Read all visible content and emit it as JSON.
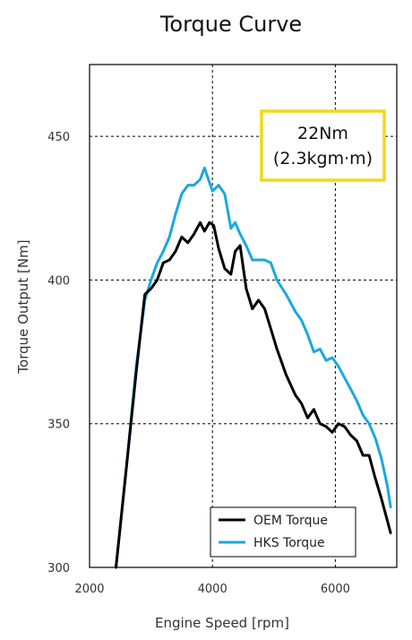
{
  "chart_data": {
    "type": "line",
    "title": "Torque Curve",
    "xlabel": "Engine Speed [rpm]",
    "ylabel": "Torque Output [Nm]",
    "xlim": [
      2000,
      7000
    ],
    "ylim": [
      300,
      475
    ],
    "xticks": [
      2000,
      4000,
      6000
    ],
    "yticks": [
      300,
      350,
      400,
      450
    ],
    "grid": "dashed",
    "legend_position": "bottom-right",
    "callout": {
      "line1": "22Nm",
      "line2": "(2.3kgm·m)",
      "border_color": "#f2d817"
    },
    "series": [
      {
        "name": "OEM Torque",
        "color": "#000000",
        "x": [
          2430,
          2600,
          2760,
          2900,
          3000,
          3100,
          3200,
          3300,
          3400,
          3500,
          3600,
          3700,
          3800,
          3870,
          3950,
          4020,
          4100,
          4200,
          4300,
          4370,
          4450,
          4550,
          4650,
          4750,
          4850,
          4950,
          5050,
          5200,
          5350,
          5450,
          5550,
          5650,
          5750,
          5850,
          5950,
          6050,
          6150,
          6250,
          6350,
          6450,
          6550,
          6650,
          6750,
          6850,
          6900
        ],
        "y": [
          300,
          335,
          368,
          395,
          397,
          400,
          406,
          407,
          410,
          415,
          413,
          416,
          420,
          417,
          420,
          419,
          411,
          404,
          402,
          410,
          412,
          397,
          390,
          393,
          390,
          383,
          376,
          367,
          360,
          357,
          352,
          355,
          350,
          349,
          347,
          350,
          349,
          346,
          344,
          339,
          339,
          331,
          324,
          316,
          312
        ]
      },
      {
        "name": "HKS Torque",
        "color": "#1aa8e0",
        "x": [
          2430,
          2600,
          2760,
          2900,
          3000,
          3100,
          3200,
          3300,
          3400,
          3500,
          3600,
          3700,
          3800,
          3870,
          3950,
          4000,
          4100,
          4200,
          4300,
          4370,
          4450,
          4550,
          4650,
          4750,
          4850,
          4950,
          5050,
          5200,
          5350,
          5450,
          5550,
          5650,
          5750,
          5850,
          5950,
          6050,
          6150,
          6250,
          6350,
          6450,
          6550,
          6650,
          6750,
          6850,
          6900
        ],
        "y": [
          300,
          335,
          370,
          393,
          400,
          406,
          410,
          415,
          423,
          430,
          433,
          433,
          435,
          439,
          434,
          431,
          433,
          430,
          418,
          420,
          416,
          412,
          407,
          407,
          407,
          406,
          400,
          395,
          389,
          386,
          381,
          375,
          376,
          372,
          373,
          370,
          366,
          362,
          358,
          353,
          350,
          345,
          338,
          328,
          321
        ]
      }
    ]
  }
}
